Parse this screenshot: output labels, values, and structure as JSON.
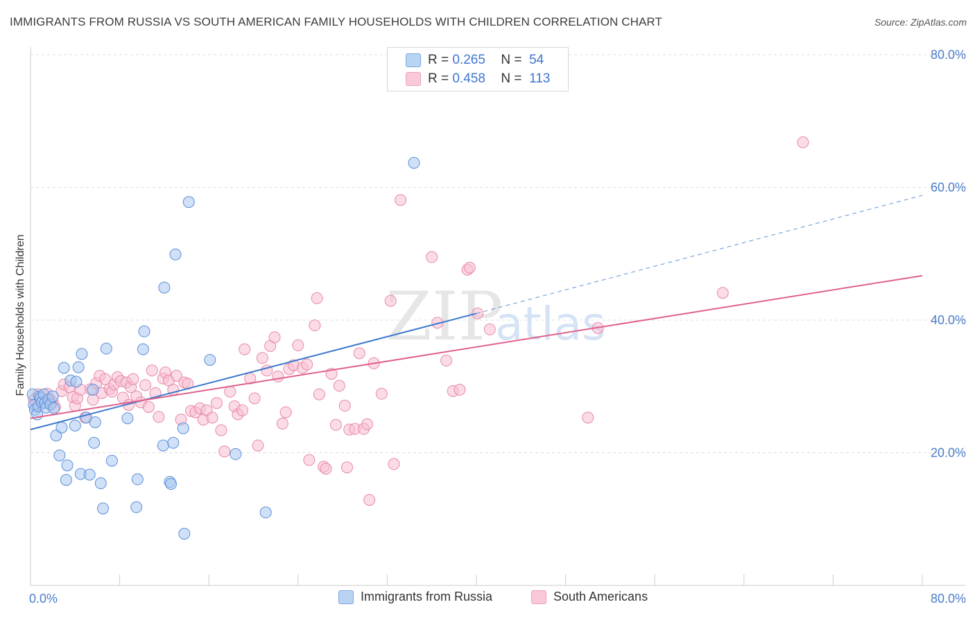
{
  "header": {
    "title": "IMMIGRANTS FROM RUSSIA VS SOUTH AMERICAN FAMILY HOUSEHOLDS WITH CHILDREN CORRELATION CHART",
    "source": "Source: ZipAtlas.com"
  },
  "legend": {
    "rows": [
      {
        "r_label": "R =",
        "r_value": "0.265",
        "n_label": "N =",
        "n_value": "54"
      },
      {
        "r_label": "R =",
        "r_value": "0.458",
        "n_label": "N =",
        "n_value": "113"
      }
    ]
  },
  "watermark": {
    "zip": "ZIP",
    "atlas": "atlas"
  },
  "chart_data": {
    "type": "scatter",
    "title": "IMMIGRANTS FROM RUSSIA VS SOUTH AMERICAN FAMILY HOUSEHOLDS WITH CHILDREN CORRELATION CHART",
    "xlabel": "",
    "ylabel": "Family Households with Children",
    "xlim": [
      0,
      80
    ],
    "ylim": [
      0,
      80
    ],
    "x_tick_labels": [
      "0.0%",
      "80.0%"
    ],
    "y_ticks": [
      20,
      40,
      60,
      80
    ],
    "y_tick_labels": [
      "20.0%",
      "40.0%",
      "60.0%",
      "80.0%"
    ],
    "grid": true,
    "legend_position": "bottom-center",
    "colors": {
      "russia_fill": "#a9c8f0",
      "russia_stroke": "#5b8fd8",
      "russia_line": "#3b78cc",
      "south_fill": "#f7bfd2",
      "south_stroke": "#e888a8",
      "south_line": "#e0608c",
      "grid": "#dddddd",
      "axis": "#cccccc",
      "tick_text": "#4a7cc9"
    },
    "series": [
      {
        "name": "Immigrants from Russia",
        "R": 0.265,
        "N": 54,
        "trend": {
          "x0": 0,
          "y0": 23.5,
          "x1": 40,
          "y1": 41.0,
          "dashed_to_x": 80,
          "dashed_to_y": 58.8
        },
        "points": [
          [
            0.2,
            28.8
          ],
          [
            0.3,
            27.2
          ],
          [
            0.4,
            26.5
          ],
          [
            0.6,
            25.8
          ],
          [
            0.7,
            27.0
          ],
          [
            0.8,
            28.5
          ],
          [
            0.9,
            28.2
          ],
          [
            1.0,
            27.6
          ],
          [
            1.2,
            28.8
          ],
          [
            1.3,
            27.5
          ],
          [
            1.4,
            26.8
          ],
          [
            1.6,
            28.0
          ],
          [
            1.8,
            27.3
          ],
          [
            2.0,
            28.5
          ],
          [
            2.1,
            26.7
          ],
          [
            2.3,
            22.6
          ],
          [
            2.6,
            19.6
          ],
          [
            2.8,
            23.8
          ],
          [
            3.0,
            32.8
          ],
          [
            3.2,
            15.9
          ],
          [
            3.3,
            18.1
          ],
          [
            3.6,
            30.9
          ],
          [
            4.0,
            24.1
          ],
          [
            4.1,
            30.7
          ],
          [
            4.3,
            32.9
          ],
          [
            4.5,
            16.8
          ],
          [
            4.6,
            34.9
          ],
          [
            5.0,
            25.3
          ],
          [
            5.3,
            16.7
          ],
          [
            5.6,
            29.5
          ],
          [
            5.7,
            21.5
          ],
          [
            5.8,
            24.6
          ],
          [
            6.3,
            15.4
          ],
          [
            6.5,
            11.6
          ],
          [
            6.8,
            35.7
          ],
          [
            7.3,
            18.8
          ],
          [
            8.7,
            25.2
          ],
          [
            9.5,
            11.8
          ],
          [
            9.6,
            16.0
          ],
          [
            10.1,
            35.6
          ],
          [
            10.2,
            38.3
          ],
          [
            11.9,
            21.1
          ],
          [
            12.0,
            44.9
          ],
          [
            12.5,
            15.6
          ],
          [
            12.6,
            15.3
          ],
          [
            12.8,
            21.5
          ],
          [
            13.0,
            49.9
          ],
          [
            13.7,
            23.7
          ],
          [
            13.8,
            7.8
          ],
          [
            14.2,
            57.8
          ],
          [
            16.1,
            34.0
          ],
          [
            18.4,
            19.8
          ],
          [
            21.1,
            11.0
          ],
          [
            34.4,
            63.7
          ]
        ]
      },
      {
        "name": "South Americans",
        "R": 0.458,
        "N": 113,
        "trend": {
          "x0": 0,
          "y0": 25.2,
          "x1": 80,
          "y1": 46.7
        },
        "points": [
          [
            0.3,
            28.0
          ],
          [
            0.5,
            27.2
          ],
          [
            0.7,
            28.8
          ],
          [
            1.0,
            27.5
          ],
          [
            1.1,
            28.4
          ],
          [
            1.3,
            27.8
          ],
          [
            1.5,
            28.9
          ],
          [
            1.7,
            28.1
          ],
          [
            2.0,
            27.6
          ],
          [
            2.2,
            26.9
          ],
          [
            2.8,
            29.3
          ],
          [
            3.0,
            30.3
          ],
          [
            3.5,
            29.9
          ],
          [
            3.8,
            28.4
          ],
          [
            4.0,
            27.1
          ],
          [
            4.2,
            28.2
          ],
          [
            4.5,
            29.5
          ],
          [
            4.9,
            25.3
          ],
          [
            5.4,
            29.6
          ],
          [
            5.6,
            28.0
          ],
          [
            5.9,
            30.5
          ],
          [
            6.2,
            31.6
          ],
          [
            6.4,
            29.0
          ],
          [
            6.7,
            31.1
          ],
          [
            7.1,
            29.6
          ],
          [
            7.3,
            29.2
          ],
          [
            7.5,
            30.3
          ],
          [
            7.8,
            31.4
          ],
          [
            8.1,
            30.8
          ],
          [
            8.3,
            28.3
          ],
          [
            8.6,
            30.6
          ],
          [
            8.8,
            27.2
          ],
          [
            9.0,
            29.9
          ],
          [
            9.2,
            31.1
          ],
          [
            9.5,
            28.5
          ],
          [
            9.9,
            27.6
          ],
          [
            10.3,
            30.2
          ],
          [
            10.6,
            26.9
          ],
          [
            10.9,
            32.4
          ],
          [
            11.2,
            29.0
          ],
          [
            11.5,
            25.4
          ],
          [
            11.9,
            31.2
          ],
          [
            12.1,
            32.1
          ],
          [
            12.4,
            30.9
          ],
          [
            12.8,
            29.5
          ],
          [
            13.1,
            31.6
          ],
          [
            13.5,
            25.0
          ],
          [
            13.8,
            30.6
          ],
          [
            14.1,
            30.4
          ],
          [
            14.4,
            26.3
          ],
          [
            14.8,
            26.1
          ],
          [
            15.2,
            26.7
          ],
          [
            15.5,
            25.0
          ],
          [
            15.8,
            26.4
          ],
          [
            16.3,
            25.3
          ],
          [
            16.7,
            27.5
          ],
          [
            17.1,
            23.4
          ],
          [
            17.4,
            20.2
          ],
          [
            17.9,
            29.2
          ],
          [
            18.3,
            27.0
          ],
          [
            18.6,
            25.8
          ],
          [
            19.0,
            26.4
          ],
          [
            19.2,
            35.6
          ],
          [
            19.7,
            31.2
          ],
          [
            20.1,
            28.2
          ],
          [
            20.4,
            21.1
          ],
          [
            20.8,
            34.3
          ],
          [
            21.2,
            32.4
          ],
          [
            21.5,
            36.1
          ],
          [
            21.9,
            37.4
          ],
          [
            22.2,
            31.5
          ],
          [
            22.6,
            24.4
          ],
          [
            22.9,
            26.1
          ],
          [
            23.2,
            32.6
          ],
          [
            23.6,
            33.2
          ],
          [
            24.0,
            36.2
          ],
          [
            24.4,
            32.8
          ],
          [
            24.8,
            33.3
          ],
          [
            25.0,
            18.9
          ],
          [
            25.5,
            39.2
          ],
          [
            25.7,
            43.3
          ],
          [
            25.9,
            28.8
          ],
          [
            26.3,
            17.9
          ],
          [
            26.5,
            17.6
          ],
          [
            27.0,
            31.9
          ],
          [
            27.4,
            24.2
          ],
          [
            27.7,
            30.1
          ],
          [
            28.2,
            27.1
          ],
          [
            28.4,
            17.8
          ],
          [
            28.6,
            23.5
          ],
          [
            29.1,
            23.6
          ],
          [
            29.5,
            35.0
          ],
          [
            29.9,
            23.6
          ],
          [
            30.2,
            24.3
          ],
          [
            30.4,
            12.9
          ],
          [
            30.8,
            33.5
          ],
          [
            31.5,
            28.9
          ],
          [
            32.3,
            42.9
          ],
          [
            32.6,
            18.3
          ],
          [
            33.2,
            58.1
          ],
          [
            36.0,
            49.5
          ],
          [
            36.5,
            39.6
          ],
          [
            37.3,
            33.9
          ],
          [
            37.9,
            29.3
          ],
          [
            38.5,
            29.5
          ],
          [
            39.2,
            47.6
          ],
          [
            39.4,
            47.9
          ],
          [
            40.1,
            41.0
          ],
          [
            41.2,
            38.6
          ],
          [
            50.0,
            25.3
          ],
          [
            50.9,
            38.8
          ],
          [
            62.1,
            44.1
          ],
          [
            69.3,
            66.8
          ]
        ]
      }
    ]
  },
  "bottom_legend": {
    "items": [
      "Immigrants from Russia",
      "South Americans"
    ]
  }
}
